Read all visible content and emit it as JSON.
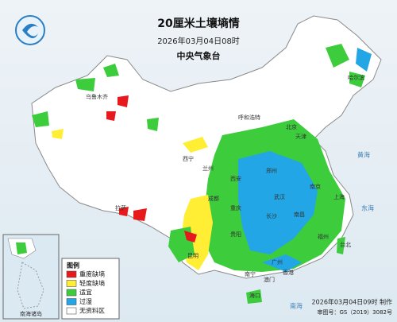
{
  "header": {
    "title": "20厘米土壤墒情",
    "time": "2026年03月04日08时",
    "issuer": "中央气象台"
  },
  "legend": {
    "title": "图例",
    "items": [
      {
        "label": "重度缺墒",
        "color": "#e8191c"
      },
      {
        "label": "轻度缺墒",
        "color": "#ffee33"
      },
      {
        "label": "适宜",
        "color": "#3ccc3c"
      },
      {
        "label": "过湿",
        "color": "#22a6e6"
      },
      {
        "label": "无资料区",
        "color": "#ffffff"
      }
    ]
  },
  "cities": [
    "哈尔滨",
    "乌鲁木齐",
    "呼和浩特",
    "北京",
    "天津",
    "西宁",
    "兰州",
    "西安",
    "郑州",
    "南京",
    "上海",
    "武汉",
    "拉萨",
    "成都",
    "重庆",
    "长沙",
    "南昌",
    "福州",
    "昆明",
    "贵阳",
    "南宁",
    "广州",
    "台北",
    "香港",
    "澳门",
    "海口"
  ],
  "seas": [
    "黄海",
    "东海",
    "南海"
  ],
  "inset": {
    "label": "南海诸岛"
  },
  "footer": {
    "made": "2026年03月04日09时 制作",
    "approval": "审图号：GS（2019）3082号"
  }
}
